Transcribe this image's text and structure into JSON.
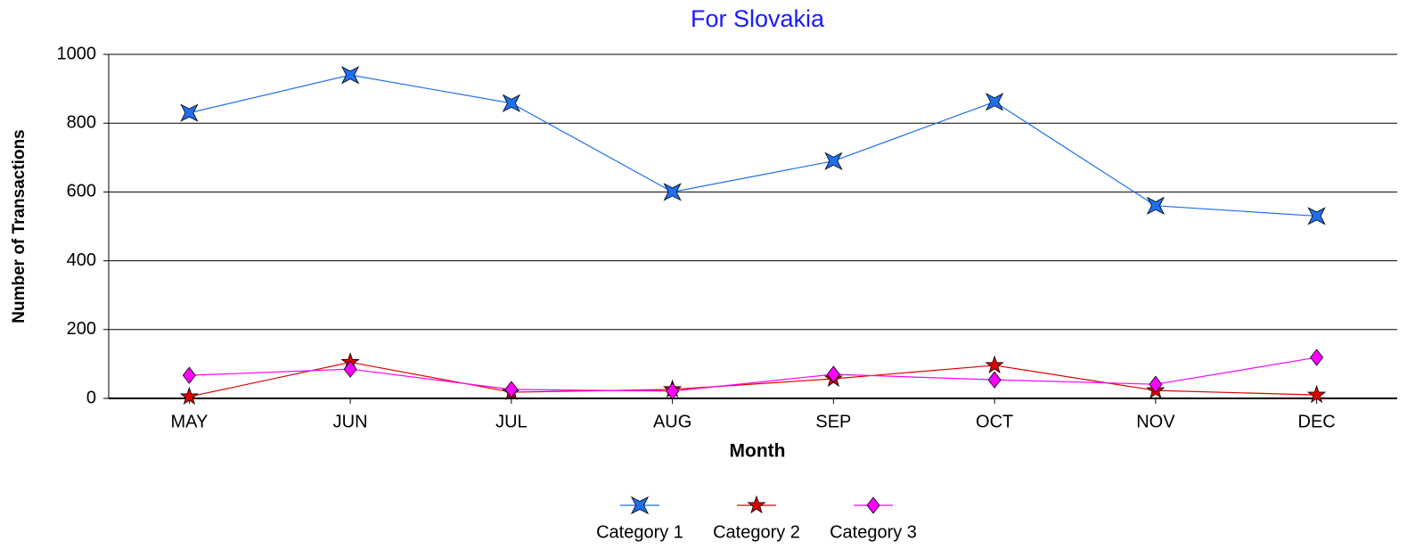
{
  "chart_data": {
    "type": "line",
    "title": "For Slovakia",
    "xlabel": "Month",
    "ylabel": "Number of Transactions",
    "categories": [
      "MAY",
      "JUN",
      "JUL",
      "AUG",
      "SEP",
      "OCT",
      "NOV",
      "DEC"
    ],
    "series": [
      {
        "name": "Category 1",
        "color": "#1f6fef",
        "values": [
          830,
          940,
          858,
          600,
          690,
          862,
          560,
          530
        ]
      },
      {
        "name": "Category 2",
        "color": "#e00000",
        "values": [
          5,
          105,
          18,
          26,
          57,
          96,
          23,
          10
        ]
      },
      {
        "name": "Category 3",
        "color": "#ff00ff",
        "values": [
          67,
          85,
          26,
          21,
          70,
          54,
          41,
          119
        ]
      }
    ],
    "ylim": [
      0,
      1000
    ],
    "yticks": [
      0,
      200,
      400,
      600,
      800,
      1000
    ],
    "grid": true,
    "legend": "bottom"
  }
}
